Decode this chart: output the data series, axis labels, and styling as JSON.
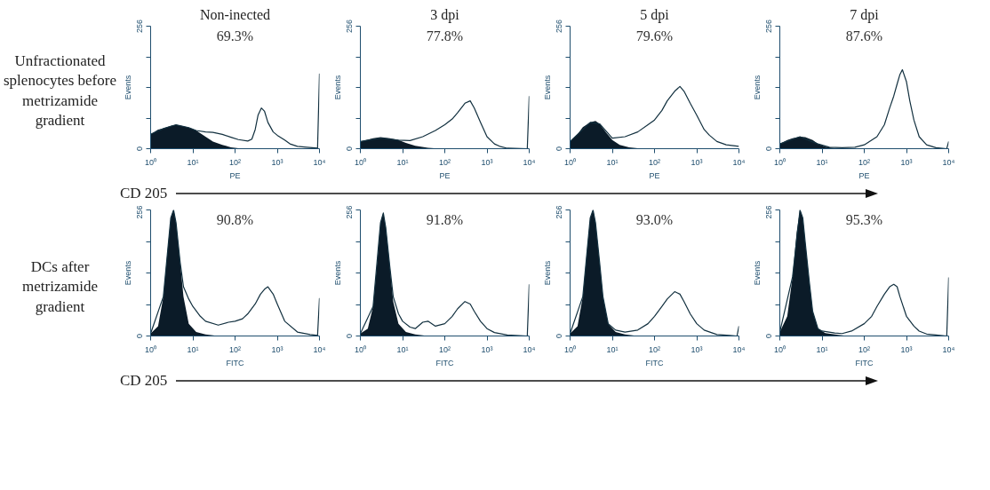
{
  "chart_data": [
    {
      "type": "area",
      "title": "Non-inected",
      "xlabel": "PE",
      "ylabel": "Events",
      "log": "x",
      "grid": false,
      "xlim": [
        1,
        10000
      ],
      "ylim": [
        0,
        256
      ],
      "xticks": [
        {
          "value": 1,
          "label": "10⁰"
        },
        {
          "value": 10,
          "label": "10¹"
        },
        {
          "value": 100,
          "label": "10²"
        },
        {
          "value": 1000,
          "label": "10³"
        },
        {
          "value": 10000,
          "label": "10⁴"
        }
      ],
      "yticks": [
        0,
        {
          "value": 64,
          "label": null
        },
        {
          "value": 128,
          "label": null
        },
        {
          "value": 192,
          "label": null
        },
        256
      ],
      "annotations": [
        "69.3%",
        "Unfractionated splenocytes before metrizamide gradient",
        "CD 205"
      ],
      "series": [
        {
          "color": "#0b1b28",
          "x": [
            1,
            1.5,
            2,
            3,
            4,
            6,
            8,
            12,
            20,
            30,
            50,
            80,
            120,
            200
          ],
          "values": [
            30,
            40,
            42,
            48,
            50,
            47,
            44,
            38,
            25,
            15,
            8,
            3,
            1,
            0
          ]
        },
        {
          "type": "line",
          "color": "#12303f",
          "x": [
            1,
            2,
            4,
            8,
            12,
            20,
            30,
            50,
            80,
            120,
            200,
            250,
            300,
            350,
            420,
            500,
            600,
            800,
            1000,
            1500,
            2000,
            3000,
            5000,
            9000,
            10000
          ],
          "values": [
            30,
            42,
            50,
            44,
            38,
            35,
            34,
            30,
            24,
            19,
            16,
            20,
            40,
            70,
            85,
            78,
            55,
            35,
            28,
            18,
            10,
            5,
            3,
            1,
            157
          ]
        }
      ]
    },
    {
      "type": "area",
      "title": "3 dpi",
      "xlabel": "PE",
      "ylabel": "Events",
      "log": "x",
      "grid": false,
      "xlim": [
        1,
        10000
      ],
      "ylim": [
        0,
        256
      ],
      "xticks": [
        {
          "value": 1,
          "label": "10⁰"
        },
        {
          "value": 10,
          "label": "10¹"
        },
        {
          "value": 100,
          "label": "10²"
        },
        {
          "value": 1000,
          "label": "10³"
        },
        {
          "value": 10000,
          "label": "10⁴"
        }
      ],
      "yticks": [
        0,
        {
          "value": 64,
          "label": null
        },
        {
          "value": 128,
          "label": null
        },
        {
          "value": 192,
          "label": null
        },
        256
      ],
      "annotations": [
        "77.8%"
      ],
      "series": [
        {
          "color": "#0b1b28",
          "x": [
            1,
            2,
            3,
            5,
            8,
            12,
            20,
            40,
            80
          ],
          "values": [
            15,
            22,
            24,
            22,
            18,
            12,
            6,
            2,
            0
          ]
        },
        {
          "type": "line",
          "color": "#12303f",
          "x": [
            1,
            3,
            8,
            15,
            30,
            60,
            100,
            150,
            200,
            300,
            400,
            500,
            700,
            1000,
            1500,
            2000,
            3000,
            9000,
            10000
          ],
          "values": [
            15,
            22,
            18,
            17,
            25,
            38,
            50,
            62,
            75,
            95,
            100,
            85,
            55,
            25,
            10,
            5,
            1,
            0,
            110
          ]
        }
      ]
    },
    {
      "type": "area",
      "title": "5 dpi",
      "xlabel": "PE",
      "ylabel": "Events",
      "log": "x",
      "grid": false,
      "xlim": [
        1,
        10000
      ],
      "ylim": [
        0,
        256
      ],
      "xticks": [
        {
          "value": 1,
          "label": "10⁰"
        },
        {
          "value": 10,
          "label": "10¹"
        },
        {
          "value": 100,
          "label": "10²"
        },
        {
          "value": 1000,
          "label": "10³"
        },
        {
          "value": 10000,
          "label": "10⁴"
        }
      ],
      "yticks": [
        0,
        {
          "value": 64,
          "label": null
        },
        {
          "value": 128,
          "label": null
        },
        {
          "value": 192,
          "label": null
        },
        256
      ],
      "annotations": [
        "79.6%"
      ],
      "series": [
        {
          "color": "#0b1b28",
          "x": [
            1,
            1.5,
            2,
            3,
            4,
            5,
            7,
            10,
            15,
            25,
            40,
            70
          ],
          "values": [
            15,
            30,
            45,
            55,
            58,
            52,
            35,
            18,
            8,
            3,
            1,
            0
          ]
        },
        {
          "type": "line",
          "color": "#12303f",
          "x": [
            1,
            3,
            5,
            10,
            20,
            40,
            70,
            100,
            150,
            200,
            300,
            400,
            500,
            700,
            1000,
            1500,
            2000,
            3000,
            5000,
            10000
          ],
          "values": [
            15,
            55,
            52,
            22,
            25,
            35,
            50,
            60,
            80,
            100,
            120,
            130,
            120,
            95,
            70,
            40,
            28,
            15,
            8,
            5
          ]
        }
      ]
    },
    {
      "type": "area",
      "title": "7 dpi",
      "xlabel": "PE",
      "ylabel": "Events",
      "log": "x",
      "grid": false,
      "xlim": [
        1,
        10000
      ],
      "ylim": [
        0,
        256
      ],
      "xticks": [
        {
          "value": 1,
          "label": "10⁰"
        },
        {
          "value": 10,
          "label": "10¹"
        },
        {
          "value": 100,
          "label": "10²"
        },
        {
          "value": 1000,
          "label": "10³"
        },
        {
          "value": 10000,
          "label": "10⁴"
        }
      ],
      "yticks": [
        0,
        {
          "value": 64,
          "label": null
        },
        {
          "value": 128,
          "label": null
        },
        {
          "value": 192,
          "label": null
        },
        256
      ],
      "annotations": [
        "87.6%"
      ],
      "series": [
        {
          "color": "#0b1b28",
          "x": [
            1,
            1.5,
            2,
            3,
            4,
            6,
            8,
            12,
            20,
            40
          ],
          "values": [
            10,
            18,
            22,
            25,
            24,
            18,
            10,
            4,
            1,
            0
          ]
        },
        {
          "type": "line",
          "color": "#12303f",
          "x": [
            1,
            3,
            8,
            15,
            30,
            60,
            100,
            200,
            300,
            400,
            500,
            600,
            700,
            800,
            1000,
            1200,
            1500,
            2000,
            3000,
            5000,
            9000,
            10000
          ],
          "values": [
            10,
            25,
            10,
            3,
            2,
            3,
            8,
            25,
            50,
            85,
            110,
            135,
            155,
            165,
            140,
            100,
            60,
            25,
            8,
            2,
            0,
            15
          ]
        }
      ]
    },
    {
      "type": "area",
      "xlabel": "FITC",
      "ylabel": "Events",
      "log": "x",
      "grid": false,
      "xlim": [
        1,
        10000
      ],
      "ylim": [
        0,
        256
      ],
      "xticks": [
        {
          "value": 1,
          "label": "10⁰"
        },
        {
          "value": 10,
          "label": "10¹"
        },
        {
          "value": 100,
          "label": "10²"
        },
        {
          "value": 1000,
          "label": "10³"
        },
        {
          "value": 10000,
          "label": "10⁴"
        }
      ],
      "yticks": [
        0,
        {
          "value": 64,
          "label": null
        },
        {
          "value": 128,
          "label": null
        },
        {
          "value": 192,
          "label": null
        },
        256
      ],
      "annotations": [
        "90.8%",
        "DCs after metrizamide gradient",
        "CD 205"
      ],
      "series": [
        {
          "color": "#0b1b28",
          "x": [
            1,
            1.5,
            2,
            2.5,
            3,
            3.5,
            4,
            5,
            6,
            8,
            12,
            20,
            40
          ],
          "values": [
            5,
            20,
            80,
            170,
            240,
            256,
            230,
            150,
            80,
            25,
            8,
            3,
            0
          ]
        },
        {
          "type": "line",
          "color": "#12303f",
          "x": [
            1,
            2,
            3,
            3.5,
            4,
            5,
            6,
            8,
            10,
            15,
            20,
            40,
            70,
            100,
            150,
            200,
            300,
            400,
            500,
            600,
            800,
            1000,
            1500,
            3000,
            6000,
            9000,
            10000
          ],
          "values": [
            5,
            80,
            240,
            256,
            230,
            150,
            100,
            75,
            60,
            40,
            30,
            22,
            28,
            30,
            35,
            45,
            65,
            85,
            95,
            100,
            85,
            65,
            30,
            8,
            3,
            1,
            77
          ]
        }
      ]
    },
    {
      "type": "area",
      "xlabel": "FITC",
      "ylabel": "Events",
      "log": "x",
      "grid": false,
      "xlim": [
        1,
        10000
      ],
      "ylim": [
        0,
        256
      ],
      "xticks": [
        {
          "value": 1,
          "label": "10⁰"
        },
        {
          "value": 10,
          "label": "10¹"
        },
        {
          "value": 100,
          "label": "10²"
        },
        {
          "value": 1000,
          "label": "10³"
        },
        {
          "value": 10000,
          "label": "10⁴"
        }
      ],
      "yticks": [
        0,
        {
          "value": 64,
          "label": null
        },
        {
          "value": 128,
          "label": null
        },
        {
          "value": 192,
          "label": null
        },
        256
      ],
      "annotations": [
        "91.8%"
      ],
      "series": [
        {
          "color": "#0b1b28",
          "x": [
            1,
            1.5,
            2,
            2.5,
            3,
            3.5,
            4,
            5,
            6,
            8,
            12,
            20,
            40
          ],
          "values": [
            5,
            15,
            60,
            150,
            230,
            250,
            220,
            140,
            70,
            25,
            8,
            3,
            0
          ]
        },
        {
          "type": "line",
          "color": "#12303f",
          "x": [
            1,
            2,
            3,
            3.5,
            4,
            5,
            6,
            8,
            10,
            15,
            20,
            30,
            40,
            60,
            100,
            150,
            200,
            300,
            400,
            500,
            700,
            1000,
            1500,
            3000,
            9000,
            10000
          ],
          "values": [
            5,
            60,
            230,
            250,
            220,
            140,
            80,
            45,
            30,
            18,
            15,
            28,
            30,
            20,
            25,
            40,
            55,
            70,
            65,
            50,
            30,
            15,
            7,
            2,
            0,
            105
          ]
        }
      ]
    },
    {
      "type": "area",
      "xlabel": "FITC",
      "ylabel": "Events",
      "log": "x",
      "grid": false,
      "xlim": [
        1,
        10000
      ],
      "ylim": [
        0,
        256
      ],
      "xticks": [
        {
          "value": 1,
          "label": "10⁰"
        },
        {
          "value": 10,
          "label": "10¹"
        },
        {
          "value": 100,
          "label": "10²"
        },
        {
          "value": 1000,
          "label": "10³"
        },
        {
          "value": 10000,
          "label": "10⁴"
        }
      ],
      "yticks": [
        0,
        {
          "value": 64,
          "label": null
        },
        {
          "value": 128,
          "label": null
        },
        {
          "value": 192,
          "label": null
        },
        256
      ],
      "annotations": [
        "93.0%"
      ],
      "series": [
        {
          "color": "#0b1b28",
          "x": [
            1,
            1.5,
            2,
            2.5,
            3,
            3.5,
            4,
            5,
            6,
            8,
            12,
            20,
            40
          ],
          "values": [
            5,
            20,
            80,
            170,
            240,
            256,
            230,
            150,
            80,
            25,
            8,
            3,
            0
          ]
        },
        {
          "type": "line",
          "color": "#12303f",
          "x": [
            1,
            2,
            3,
            3.5,
            4,
            5,
            6,
            8,
            12,
            20,
            40,
            70,
            100,
            150,
            200,
            300,
            400,
            500,
            700,
            1000,
            1500,
            3000,
            6000,
            9000,
            10000
          ],
          "values": [
            5,
            80,
            240,
            256,
            230,
            150,
            80,
            25,
            12,
            8,
            12,
            25,
            40,
            60,
            75,
            90,
            85,
            70,
            45,
            25,
            12,
            3,
            1,
            0,
            20
          ]
        }
      ]
    },
    {
      "type": "area",
      "xlabel": "FITC",
      "ylabel": "Events",
      "log": "x",
      "grid": false,
      "xlim": [
        1,
        10000
      ],
      "ylim": [
        0,
        256
      ],
      "xticks": [
        {
          "value": 1,
          "label": "10⁰"
        },
        {
          "value": 10,
          "label": "10¹"
        },
        {
          "value": 100,
          "label": "10²"
        },
        {
          "value": 1000,
          "label": "10³"
        },
        {
          "value": 10000,
          "label": "10⁴"
        }
      ],
      "yticks": [
        0,
        {
          "value": 64,
          "label": null
        },
        {
          "value": 128,
          "label": null
        },
        {
          "value": 192,
          "label": null
        },
        256
      ],
      "annotations": [
        "95.3%"
      ],
      "series": [
        {
          "color": "#0b1b28",
          "x": [
            1,
            1.5,
            2,
            2.5,
            3,
            3.5,
            4,
            5,
            6,
            8,
            12,
            20,
            40
          ],
          "values": [
            8,
            40,
            120,
            210,
            256,
            240,
            190,
            110,
            50,
            15,
            6,
            3,
            0
          ]
        },
        {
          "type": "line",
          "color": "#12303f",
          "x": [
            1,
            2,
            3,
            3.5,
            4,
            5,
            6,
            8,
            10,
            20,
            30,
            50,
            100,
            150,
            200,
            300,
            400,
            500,
            600,
            700,
            1000,
            1500,
            2000,
            3000,
            5000,
            9000,
            10000
          ],
          "values": [
            8,
            120,
            256,
            240,
            190,
            110,
            50,
            15,
            10,
            6,
            5,
            10,
            25,
            40,
            60,
            85,
            100,
            105,
            100,
            80,
            40,
            20,
            10,
            4,
            2,
            0,
            119
          ]
        }
      ]
    }
  ]
}
